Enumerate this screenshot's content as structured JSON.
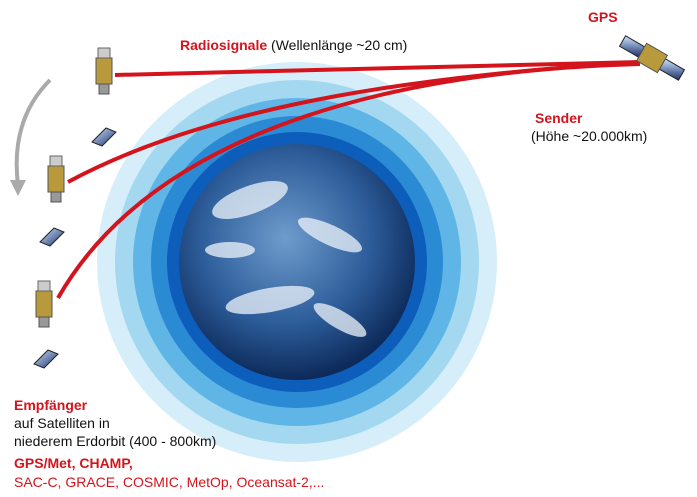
{
  "gps": {
    "label": "GPS"
  },
  "signal": {
    "title": "Radiosignale",
    "detail": "(Wellenlänge ~20 cm)"
  },
  "sender": {
    "title": "Sender",
    "detail": "(Höhe ~20.000km)"
  },
  "receiver": {
    "title": "Empfänger",
    "lines": [
      "auf Satelliten in",
      "niederem Erdorbit (400 - 800km)"
    ],
    "missions_main": "GPS/Met, CHAMP,",
    "missions_more": "SAC-C, GRACE, COSMIC, MetOp, Oceansat-2,..."
  }
}
